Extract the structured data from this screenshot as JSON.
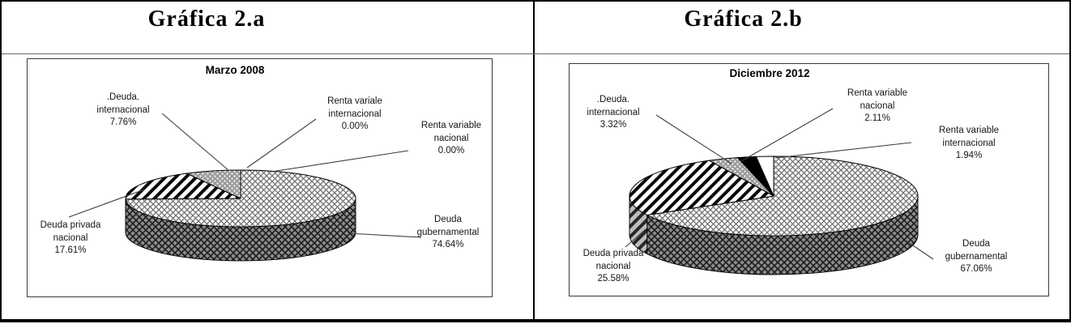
{
  "window": {
    "background": "#ffffff",
    "frame_color": "#000000",
    "pattern_style": "black-and-white hatch fills (crosshatch, diagonal stripes, dots, solid black, solid white)"
  },
  "chart_data": [
    {
      "type": "pie",
      "figure_label": "Gráfica 2.a",
      "title": "Marzo 2008",
      "units": "%",
      "style": "3d-pie with leader-line callout labels",
      "slices": [
        {
          "name": "Deuda gubernamental",
          "value": 74.64,
          "display": "74.64%",
          "pattern": "crosshatch",
          "label": "Deuda\ngubernamental\n74.64%"
        },
        {
          "name": "Deuda privada nacional",
          "value": 17.61,
          "display": "17.61%",
          "pattern": "diagonal-stripes",
          "label": "Deuda privada\nnacional\n17.61%"
        },
        {
          "name": "Deuda internacional",
          "value": 7.76,
          "display": "7.76%",
          "pattern": "dots",
          "label": ".Deuda.\ninternacional\n7.76%"
        },
        {
          "name": "Renta variale internacional",
          "value": 0.0,
          "display": "0.00%",
          "pattern": "white",
          "label": "Renta variale\ninternacional\n0.00%"
        },
        {
          "name": "Renta variable nacional",
          "value": 0.0,
          "display": "0.00%",
          "pattern": "black",
          "label": "Renta variable\nnacional\n0.00%"
        }
      ]
    },
    {
      "type": "pie",
      "figure_label": "Gráfica 2.b",
      "title": "Diciembre 2012",
      "units": "%",
      "style": "3d-pie with leader-line callout labels",
      "slices": [
        {
          "name": "Deuda gubernamental",
          "value": 67.06,
          "display": "67.06%",
          "pattern": "crosshatch",
          "label": "Deuda\ngubernamental\n67.06%"
        },
        {
          "name": "Deuda privada nacional",
          "value": 25.58,
          "display": "25.58%",
          "pattern": "diagonal-stripes",
          "label": "Deuda privada\nnacional\n25.58%"
        },
        {
          "name": "Deuda internacional",
          "value": 3.32,
          "display": "3.32%",
          "pattern": "dots",
          "label": ".Deuda.\ninternacional\n3.32%"
        },
        {
          "name": "Renta variable nacional",
          "value": 2.11,
          "display": "2.11%",
          "pattern": "black",
          "label": "Renta variable\nnacional\n2.11%"
        },
        {
          "name": "Renta variable internacional",
          "value": 1.94,
          "display": "1.94%",
          "pattern": "white",
          "label": "Renta variable\ninternacional\n1.94%"
        }
      ]
    }
  ]
}
